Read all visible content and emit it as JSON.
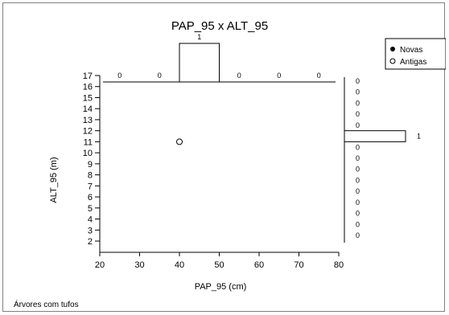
{
  "chart_data": {
    "type": "scatter",
    "title": "PAP_95  x  ALT_95",
    "xlabel": "PAP_95 (cm)",
    "ylabel": "ALT_95 (m)",
    "xlim": [
      20,
      80
    ],
    "ylim": [
      2,
      17
    ],
    "x_ticks": [
      20,
      30,
      40,
      50,
      60,
      70,
      80
    ],
    "y_ticks": [
      2,
      3,
      4,
      5,
      6,
      7,
      8,
      9,
      10,
      11,
      12,
      13,
      14,
      15,
      16,
      17
    ],
    "series": [
      {
        "name": "Novas",
        "marker": "filled-circle",
        "color": "#000000",
        "points": []
      },
      {
        "name": "Antigas",
        "marker": "open-circle",
        "color": "#000000",
        "points": [
          {
            "x": 40,
            "y": 11
          }
        ]
      }
    ],
    "x_histogram": {
      "bins": [
        [
          20,
          30
        ],
        [
          30,
          40
        ],
        [
          40,
          50
        ],
        [
          50,
          60
        ],
        [
          60,
          70
        ],
        [
          70,
          80
        ]
      ],
      "counts": [
        0,
        0,
        1,
        0,
        0,
        0
      ]
    },
    "y_histogram": {
      "bins": [
        [
          16,
          17
        ],
        [
          15,
          16
        ],
        [
          14,
          15
        ],
        [
          13,
          14
        ],
        [
          12,
          13
        ],
        [
          11,
          12
        ],
        [
          10,
          11
        ],
        [
          9,
          10
        ],
        [
          8,
          9
        ],
        [
          7,
          8
        ],
        [
          6,
          7
        ],
        [
          5,
          6
        ],
        [
          4,
          5
        ],
        [
          3,
          4
        ],
        [
          2,
          3
        ]
      ],
      "counts": [
        0,
        0,
        0,
        0,
        0,
        1,
        0,
        0,
        0,
        0,
        0,
        0,
        0,
        0,
        0
      ]
    },
    "legend": {
      "position": "top-right",
      "entries": [
        "Novas",
        "Antigas"
      ]
    },
    "grid": false
  },
  "footer": {
    "text": "Árvores com tufos"
  }
}
